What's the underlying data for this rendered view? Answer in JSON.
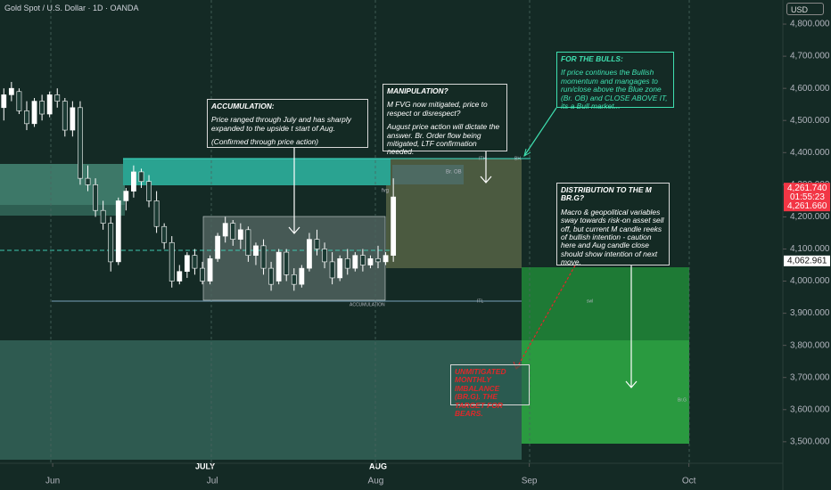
{
  "header": {
    "title": "Gold Spot / U.S. Dollar · 1D · OANDA",
    "currency": "USD"
  },
  "chart_data": {
    "type": "candlestick",
    "xlim": [
      -0.5,
      102
    ],
    "xticks": [
      {
        "value": 6.4,
        "label": "Jun"
      },
      {
        "value": 27.3,
        "label": "Jul"
      },
      {
        "value": 48.7,
        "label": "Aug"
      },
      {
        "value": 68.8,
        "label": "Sep"
      },
      {
        "value": 89.7,
        "label": "Oct"
      }
    ],
    "ylim": [
      3433,
      4875
    ],
    "yticks": [
      {
        "value": 4800,
        "label": "4,800.000"
      },
      {
        "value": 4700,
        "label": "4,700.000"
      },
      {
        "value": 4600,
        "label": "4,600.000"
      },
      {
        "value": 4500,
        "label": "4,500.000"
      },
      {
        "value": 4400,
        "label": "4,400.000"
      },
      {
        "value": 4300,
        "label": "4,300.000"
      },
      {
        "value": 4200,
        "label": "4,200.000"
      },
      {
        "value": 4100,
        "label": "4,100.000"
      },
      {
        "value": 4000,
        "label": "4,000.000"
      },
      {
        "value": 3900,
        "label": "3,900.000"
      },
      {
        "value": 3800,
        "label": "3,800.000"
      },
      {
        "value": 3700,
        "label": "3,700.000"
      },
      {
        "value": 3600,
        "label": "3,600.000"
      },
      {
        "value": 3500,
        "label": "3,500.000"
      }
    ],
    "up_color": "#ffffff",
    "down_color": "#1b3a33",
    "candles": [
      {
        "open": 4540,
        "high": 4600,
        "low": 4500,
        "close": 4580
      },
      {
        "open": 4580,
        "high": 4620,
        "low": 4560,
        "close": 4600
      },
      {
        "open": 4590,
        "high": 4600,
        "low": 4520,
        "close": 4530
      },
      {
        "open": 4530,
        "high": 4560,
        "low": 4470,
        "close": 4490
      },
      {
        "open": 4490,
        "high": 4570,
        "low": 4480,
        "close": 4560
      },
      {
        "open": 4560,
        "high": 4580,
        "low": 4500,
        "close": 4520
      },
      {
        "open": 4520,
        "high": 4590,
        "low": 4510,
        "close": 4580
      },
      {
        "open": 4580,
        "high": 4600,
        "low": 4540,
        "close": 4560
      },
      {
        "open": 4560,
        "high": 4570,
        "low": 4450,
        "close": 4470
      },
      {
        "open": 4470,
        "high": 4560,
        "low": 4450,
        "close": 4540
      },
      {
        "open": 4540,
        "high": 4560,
        "low": 4300,
        "close": 4320
      },
      {
        "open": 4320,
        "high": 4360,
        "low": 4280,
        "close": 4300
      },
      {
        "open": 4300,
        "high": 4320,
        "low": 4200,
        "close": 4220
      },
      {
        "open": 4220,
        "high": 4250,
        "low": 4160,
        "close": 4180
      },
      {
        "open": 4180,
        "high": 4200,
        "low": 4030,
        "close": 4060
      },
      {
        "open": 4060,
        "high": 4260,
        "low": 4050,
        "close": 4250
      },
      {
        "open": 4250,
        "high": 4290,
        "low": 4220,
        "close": 4280
      },
      {
        "open": 4280,
        "high": 4360,
        "low": 4260,
        "close": 4340
      },
      {
        "open": 4340,
        "high": 4350,
        "low": 4290,
        "close": 4310
      },
      {
        "open": 4310,
        "high": 4330,
        "low": 4230,
        "close": 4250
      },
      {
        "open": 4250,
        "high": 4280,
        "low": 4150,
        "close": 4170
      },
      {
        "open": 4170,
        "high": 4180,
        "low": 4100,
        "close": 4120
      },
      {
        "open": 4120,
        "high": 4140,
        "low": 3980,
        "close": 4000
      },
      {
        "open": 4000,
        "high": 4050,
        "low": 3990,
        "close": 4030
      },
      {
        "open": 4030,
        "high": 4090,
        "low": 4010,
        "close": 4080
      },
      {
        "open": 4080,
        "high": 4100,
        "low": 4020,
        "close": 4040
      },
      {
        "open": 4040,
        "high": 4060,
        "low": 3990,
        "close": 4000
      },
      {
        "open": 4000,
        "high": 4080,
        "low": 3990,
        "close": 4070
      },
      {
        "open": 4070,
        "high": 4150,
        "low": 4060,
        "close": 4140
      },
      {
        "open": 4140,
        "high": 4200,
        "low": 4120,
        "close": 4180
      },
      {
        "open": 4180,
        "high": 4190,
        "low": 4110,
        "close": 4130
      },
      {
        "open": 4130,
        "high": 4180,
        "low": 4100,
        "close": 4160
      },
      {
        "open": 4160,
        "high": 4170,
        "low": 4060,
        "close": 4080
      },
      {
        "open": 4080,
        "high": 4120,
        "low": 4050,
        "close": 4110
      },
      {
        "open": 4110,
        "high": 4130,
        "low": 4020,
        "close": 4040
      },
      {
        "open": 4040,
        "high": 4060,
        "low": 3970,
        "close": 3990
      },
      {
        "open": 4000,
        "high": 4100,
        "low": 3990,
        "close": 4090
      },
      {
        "open": 4090,
        "high": 4100,
        "low": 4000,
        "close": 4020
      },
      {
        "open": 4020,
        "high": 4040,
        "low": 3970,
        "close": 3990
      },
      {
        "open": 3990,
        "high": 4050,
        "low": 3980,
        "close": 4040
      },
      {
        "open": 4040,
        "high": 4150,
        "low": 4030,
        "close": 4130
      },
      {
        "open": 4130,
        "high": 4160,
        "low": 4080,
        "close": 4100
      },
      {
        "open": 4100,
        "high": 4120,
        "low": 4040,
        "close": 4060
      },
      {
        "open": 4060,
        "high": 4090,
        "low": 3990,
        "close": 4010
      },
      {
        "open": 4010,
        "high": 4080,
        "low": 4000,
        "close": 4070
      },
      {
        "open": 4070,
        "high": 4100,
        "low": 4020,
        "close": 4040
      },
      {
        "open": 4040,
        "high": 4090,
        "low": 4030,
        "close": 4080
      },
      {
        "open": 4080,
        "high": 4100,
        "low": 4030,
        "close": 4050
      },
      {
        "open": 4050,
        "high": 4080,
        "low": 4040,
        "close": 4070
      },
      {
        "open": 4070,
        "high": 4110,
        "low": 4040,
        "close": 4060
      },
      {
        "open": 4060,
        "high": 4090,
        "low": 4050,
        "close": 4080
      },
      {
        "open": 4080,
        "high": 4320,
        "low": 4060,
        "close": 4262
      }
    ],
    "price_labels": [
      {
        "value": 4261.74,
        "label": "4,261.740",
        "color": "#f23645"
      },
      {
        "value": 4261.66,
        "label": "4,261.660",
        "color": "#f23645"
      },
      {
        "value": 4062.961,
        "label": "4,062.961",
        "color": "#ffffff"
      }
    ],
    "countdown": "01:55:23"
  },
  "month_markers": [
    "JULY",
    "AUG"
  ],
  "annotations": [
    {
      "title": "ACCUMULATION:",
      "lines": [
        "Price ranged through July and has sharply expanded to the upside t start of Aug.",
        "(Confirmed through price action)"
      ]
    },
    {
      "title": "MANIPULATION?",
      "lines": [
        "M FVG now mitigated, price to respect or disrespect?",
        "August price action will dictate the answer. Br. Order flow being mitigated, LTF confirmation needed."
      ]
    },
    {
      "title": "FOR THE BULLS:",
      "lines": [
        "If price continues the Bullish momentum and mangages to run/close above the Blue zone (Br. OB) and CLOSE ABOVE IT, its a Bull market..."
      ]
    },
    {
      "title": "DISTRIBUTION TO THE M BR.G?",
      "lines": [
        "Macro & geopolitical variables sway towards risk-on asset sell off, but current M candle reeks of bullish intention - caution here and Aug candle close should show intention of next move."
      ]
    },
    {
      "title": "UNMITIGATED MONTHLY IMBALANCE (BR.G). THE TARGET FOR BEARS.",
      "lines": []
    }
  ],
  "zone_labels": [
    "Br. OB",
    "ITH",
    "BH",
    "fvg",
    "ACCUMULATION",
    "ITL",
    "swl",
    "Br.G"
  ]
}
